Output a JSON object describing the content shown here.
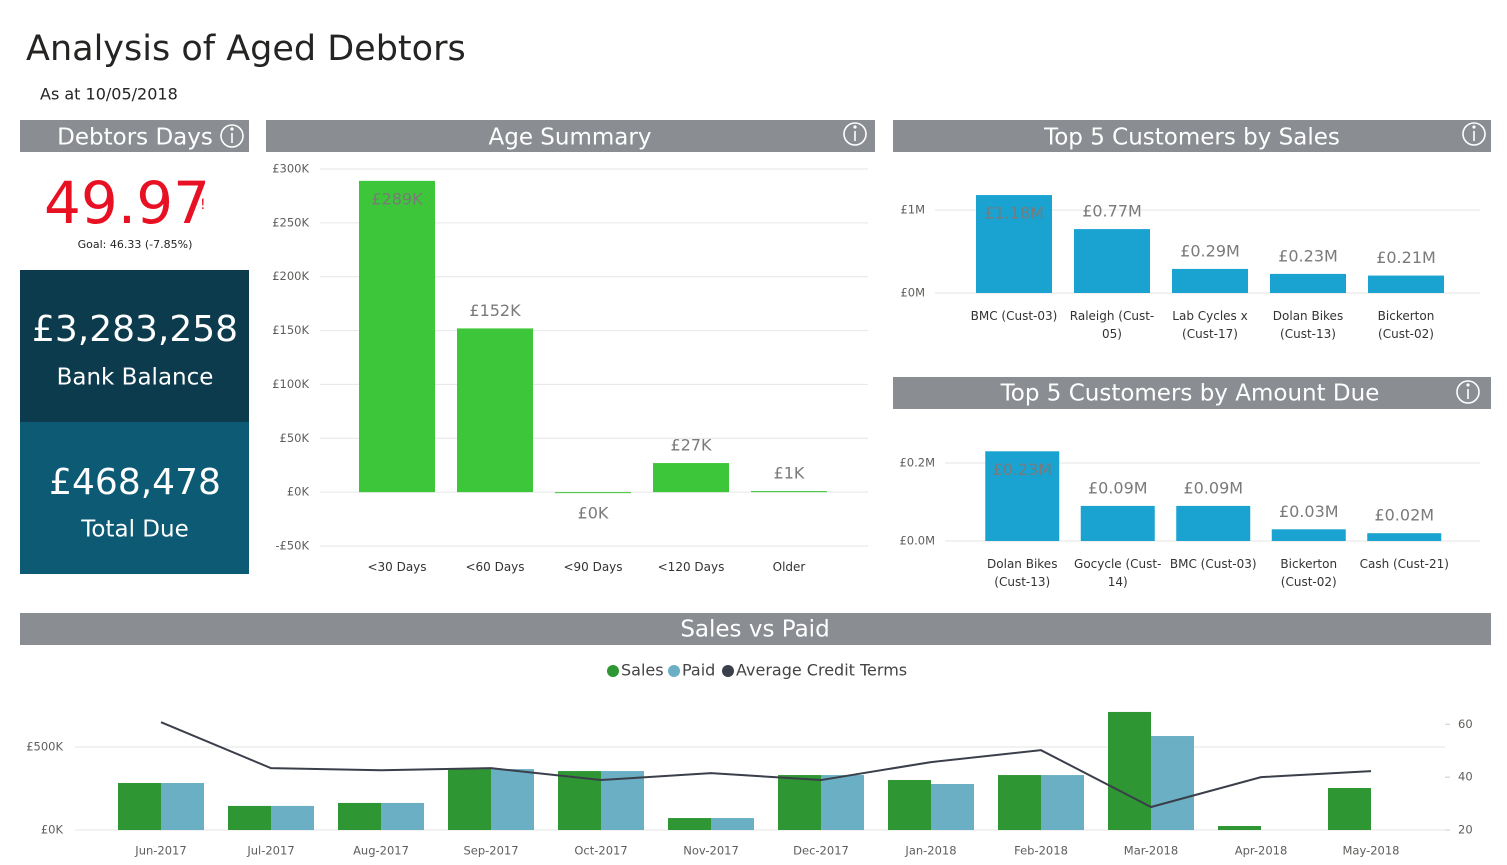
{
  "header": {
    "title": "Analysis of Aged Debtors",
    "subtitle": "As at 10/05/2018"
  },
  "kpi": {
    "title": "Debtors Days",
    "value": "49.97",
    "alert": "!",
    "goal": "Goal: 46.33 (-7.85%)"
  },
  "cards": [
    {
      "value": "£3,283,258",
      "label": "Bank Balance",
      "color": "#0b3b4c"
    },
    {
      "value": "£468,478",
      "label": "Total Due",
      "color": "#0c5a73"
    }
  ],
  "chart_data": [
    {
      "type": "bar",
      "title": "Age Summary",
      "color": "#3dc63a",
      "categories": [
        "<30 Days",
        "<60 Days",
        "<90 Days",
        "<120 Days",
        "Older"
      ],
      "values": [
        289000,
        152000,
        0,
        27000,
        1000
      ],
      "value_labels": [
        "£289K",
        "£152K",
        "£0K",
        "£27K",
        "£1K"
      ],
      "ylim": [
        -50000,
        300000
      ],
      "yticks": [
        {
          "value": -50000,
          "label": "-£50K"
        },
        {
          "value": 0,
          "label": "£0K"
        },
        {
          "value": 50000,
          "label": "£50K"
        },
        {
          "value": 100000,
          "label": "£100K"
        },
        {
          "value": 150000,
          "label": "£150K"
        },
        {
          "value": 200000,
          "label": "£200K"
        },
        {
          "value": 250000,
          "label": "£250K"
        },
        {
          "value": 300000,
          "label": "£300K"
        }
      ],
      "grid": true
    },
    {
      "type": "bar",
      "title": "Top 5 Customers by Sales",
      "color": "#1aa2d1",
      "categories": [
        "BMC (Cust-03)",
        "Raleigh (Cust-05)",
        "Lab Cycles x (Cust-17)",
        "Dolan Bikes (Cust-13)",
        "Bickerton (Cust-02)"
      ],
      "values": [
        1180000,
        770000,
        290000,
        230000,
        210000
      ],
      "value_labels": [
        "£1.18M",
        "£0.77M",
        "£0.29M",
        "£0.23M",
        "£0.21M"
      ],
      "ylim": [
        0,
        1200000
      ],
      "yticks": [
        {
          "value": 0,
          "label": "£0M"
        },
        {
          "value": 1000000,
          "label": "£1M"
        }
      ],
      "grid": true
    },
    {
      "type": "bar",
      "title": "Top 5 Customers by Amount Due",
      "color": "#1aa2d1",
      "categories": [
        "Dolan Bikes (Cust-13)",
        "Gocycle (Cust-14)",
        "BMC (Cust-03)",
        "Bickerton (Cust-02)",
        "Cash (Cust-21)"
      ],
      "values": [
        230000,
        90000,
        90000,
        30000,
        20000
      ],
      "value_labels": [
        "£0.23M",
        "£0.09M",
        "£0.09M",
        "£0.03M",
        "£0.02M"
      ],
      "ylim": [
        0,
        250000
      ],
      "yticks": [
        {
          "value": 0,
          "label": "£0.0M"
        },
        {
          "value": 200000,
          "label": "£0.2M"
        }
      ],
      "grid": true
    },
    {
      "type": "combo",
      "title": "Sales vs Paid",
      "categories": [
        "Jun-2017",
        "Jul-2017",
        "Aug-2017",
        "Sep-2017",
        "Oct-2017",
        "Nov-2017",
        "Dec-2017",
        "Jan-2018",
        "Feb-2018",
        "Mar-2018",
        "Apr-2018",
        "May-2018"
      ],
      "series": [
        {
          "name": "Sales",
          "color": "#2e9632",
          "type": "bar",
          "values": [
            283000,
            145000,
            163000,
            367000,
            355000,
            72000,
            331000,
            301000,
            331000,
            711000,
            24000,
            253000
          ]
        },
        {
          "name": "Paid",
          "color": "#6aafc4",
          "type": "bar",
          "values": [
            283000,
            145000,
            163000,
            367000,
            355000,
            72000,
            331000,
            277000,
            331000,
            566000,
            null,
            null
          ]
        },
        {
          "name": "Average Credit Terms",
          "color": "#3a3f4a",
          "type": "line",
          "axis": "y2",
          "values": [
            60.8,
            43.4,
            42.6,
            43.4,
            38.9,
            41.5,
            38.9,
            45.7,
            50.2,
            28.7,
            40,
            42.3
          ]
        }
      ],
      "ylim": [
        0,
        780000
      ],
      "yticks": [
        {
          "value": 0,
          "label": "£0K"
        },
        {
          "value": 500000,
          "label": "£500K"
        }
      ],
      "y2lim": [
        20,
        69
      ],
      "y2ticks": [
        20,
        40,
        60
      ],
      "grid": true
    }
  ]
}
